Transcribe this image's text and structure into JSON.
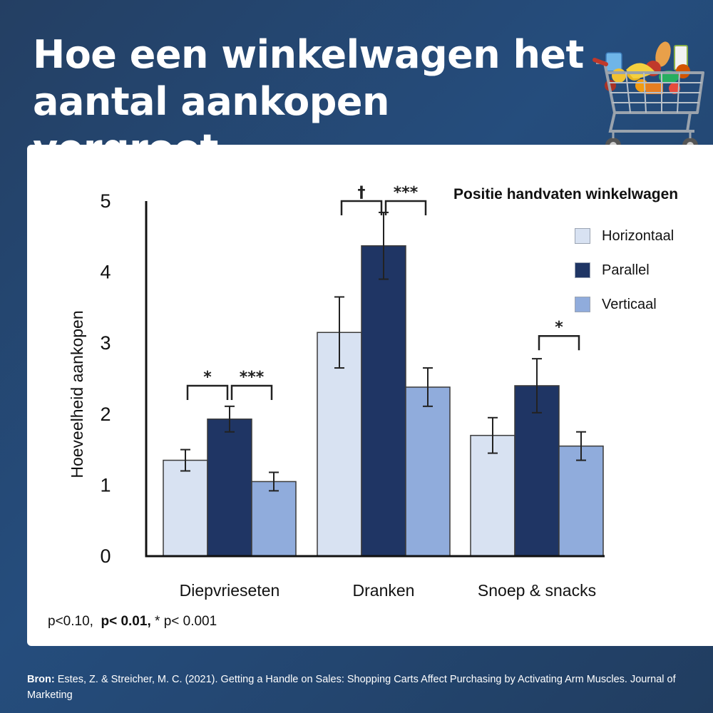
{
  "header": {
    "title": "Hoe een winkelwagen het aantal aankopen vergroot."
  },
  "icons": {
    "cart": "shopping-cart-full-icon"
  },
  "legend": {
    "title": "Positie handvaten winkelwagen",
    "items": [
      {
        "label": "Horizontaal",
        "color": "#d8e2f2"
      },
      {
        "label": "Parallel",
        "color": "#1f3564"
      },
      {
        "label": "Verticaal",
        "color": "#90acdc"
      }
    ]
  },
  "footnote": {
    "part1": "p<0.10,",
    "part2": "p< 0.01,",
    "part3": "* p< 0.001"
  },
  "source": {
    "label": "Bron:",
    "text": "Estes, Z. & Streicher, M. C. (2021). Getting a Handle on Sales: Shopping Carts Affect Purchasing by Activating Arm Muscles. Journal of Marketing"
  },
  "chart_data": {
    "type": "bar",
    "categories": [
      "Diepvrieseten",
      "Dranken",
      "Snoep & snacks"
    ],
    "series": [
      {
        "name": "Horizontaal",
        "values": [
          1.35,
          3.15,
          1.7
        ],
        "errors": [
          0.15,
          0.5,
          0.25
        ],
        "color": "#d8e2f2"
      },
      {
        "name": "Parallel",
        "values": [
          1.93,
          4.37,
          2.4
        ],
        "errors": [
          0.18,
          0.47,
          0.38
        ],
        "color": "#1f3564"
      },
      {
        "name": "Verticaal",
        "values": [
          1.05,
          2.38,
          1.55
        ],
        "errors": [
          0.13,
          0.27,
          0.2
        ],
        "color": "#90acdc"
      }
    ],
    "ylabel": "Hoeveelheid aankopen",
    "xlabel": "",
    "ylim": [
      0,
      5
    ],
    "yticks": [
      0,
      1,
      2,
      3,
      4,
      5
    ],
    "grid": false,
    "legend_position": "top-right",
    "significance": [
      {
        "category": 0,
        "from": 0,
        "to": 1,
        "label": "*",
        "level": 2.4
      },
      {
        "category": 0,
        "from": 1,
        "to": 2,
        "label": "***",
        "level": 2.4
      },
      {
        "category": 1,
        "from": 0,
        "to": 1,
        "label": "†",
        "level": 5.0
      },
      {
        "category": 1,
        "from": 1,
        "to": 2,
        "label": "***",
        "level": 5.0
      },
      {
        "category": 2,
        "from": 1,
        "to": 2,
        "label": "*",
        "level": 3.1
      }
    ]
  }
}
